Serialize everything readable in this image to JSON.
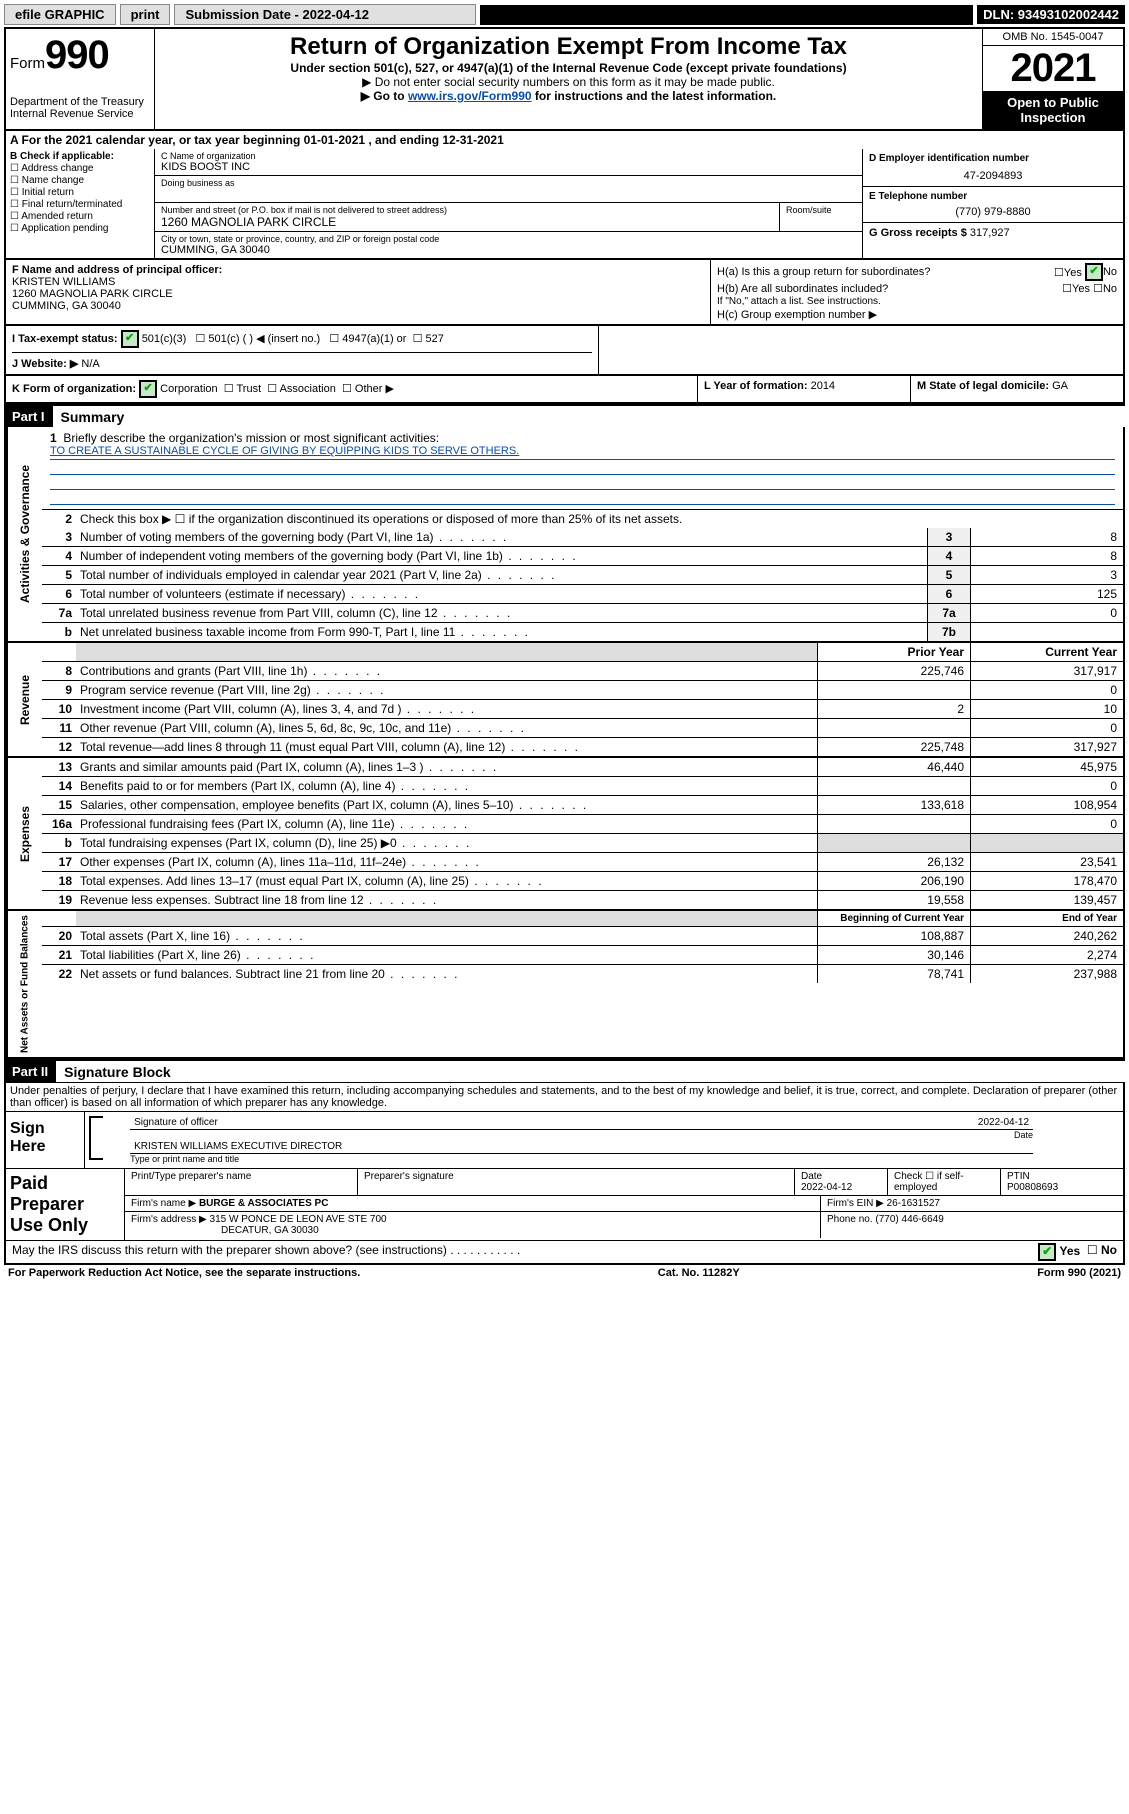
{
  "topbar": {
    "efile": "efile GRAPHIC",
    "print": "print",
    "submission": "Submission Date - 2022-04-12",
    "dln": "DLN: 93493102002442"
  },
  "header": {
    "form_word": "Form",
    "form_num": "990",
    "title": "Return of Organization Exempt From Income Tax",
    "subtitle": "Under section 501(c), 527, or 4947(a)(1) of the Internal Revenue Code (except private foundations)",
    "instr1": "▶ Do not enter social security numbers on this form as it may be made public.",
    "instr2_pre": "▶ Go to ",
    "instr2_link": "www.irs.gov/Form990",
    "instr2_post": " for instructions and the latest information.",
    "dept": "Department of the Treasury Internal Revenue Service",
    "omb": "OMB No. 1545-0047",
    "year": "2021",
    "open": "Open to Public Inspection"
  },
  "period": "A For the 2021 calendar year, or tax year beginning 01-01-2021   , and ending 12-31-2021",
  "b": {
    "title": "B Check if applicable:",
    "items": [
      "Address change",
      "Name change",
      "Initial return",
      "Final return/terminated",
      "Amended return",
      "Application pending"
    ]
  },
  "c": {
    "name_label": "C Name of organization",
    "name": "KIDS BOOST INC",
    "dba_label": "Doing business as",
    "addr_label": "Number and street (or P.O. box if mail is not delivered to street address)",
    "room_label": "Room/suite",
    "addr": "1260 MAGNOLIA PARK CIRCLE",
    "city_label": "City or town, state or province, country, and ZIP or foreign postal code",
    "city": "CUMMING, GA  30040"
  },
  "d": {
    "label": "D Employer identification number",
    "val": "47-2094893"
  },
  "e": {
    "label": "E Telephone number",
    "val": "(770) 979-8880"
  },
  "g": {
    "label": "G Gross receipts $",
    "val": "317,927"
  },
  "f": {
    "label": "F  Name and address of principal officer:",
    "name": "KRISTEN WILLIAMS",
    "addr1": "1260 MAGNOLIA PARK CIRCLE",
    "addr2": "CUMMING, GA  30040"
  },
  "h": {
    "ha": "H(a)  Is this a group return for subordinates?",
    "hb": "H(b)  Are all subordinates included?",
    "hb_note": "If \"No,\" attach a list. See instructions.",
    "hc": "H(c)  Group exemption number ▶",
    "yes": "Yes",
    "no": "No"
  },
  "i": {
    "label": "I    Tax-exempt status:",
    "o1": "501(c)(3)",
    "o2": "501(c) (  ) ◀ (insert no.)",
    "o3": "4947(a)(1) or",
    "o4": "527"
  },
  "j": {
    "label": "J   Website: ▶",
    "val": "N/A"
  },
  "k": {
    "label": "K Form of organization:",
    "corp": "Corporation",
    "trust": "Trust",
    "assoc": "Association",
    "other": "Other ▶"
  },
  "l": {
    "label": "L Year of formation:",
    "val": "2014"
  },
  "m": {
    "label": "M State of legal domicile:",
    "val": "GA"
  },
  "part1": {
    "header": "Part I",
    "title": "Summary"
  },
  "governance": {
    "label": "Activities & Governance",
    "q1": "Briefly describe the organization's mission or most significant activities:",
    "mission": "TO CREATE A SUSTAINABLE CYCLE OF GIVING BY EQUIPPING KIDS TO SERVE OTHERS.",
    "q2": "Check this box ▶ ☐  if the organization discontinued its operations or disposed of more than 25% of its net assets.",
    "rows": [
      {
        "n": "3",
        "d": "Number of voting members of the governing body (Part VI, line 1a)",
        "box": "3",
        "v": "8"
      },
      {
        "n": "4",
        "d": "Number of independent voting members of the governing body (Part VI, line 1b)",
        "box": "4",
        "v": "8"
      },
      {
        "n": "5",
        "d": "Total number of individuals employed in calendar year 2021 (Part V, line 2a)",
        "box": "5",
        "v": "3"
      },
      {
        "n": "6",
        "d": "Total number of volunteers (estimate if necessary)",
        "box": "6",
        "v": "125"
      },
      {
        "n": "7a",
        "d": "Total unrelated business revenue from Part VIII, column (C), line 12",
        "box": "7a",
        "v": "0"
      },
      {
        "n": "b",
        "d": "Net unrelated business taxable income from Form 990-T, Part I, line 11",
        "box": "7b",
        "v": ""
      }
    ]
  },
  "revenue": {
    "label": "Revenue",
    "hdr1": "Prior Year",
    "hdr2": "Current Year",
    "rows": [
      {
        "n": "8",
        "d": "Contributions and grants (Part VIII, line 1h)",
        "p": "225,746",
        "c": "317,917"
      },
      {
        "n": "9",
        "d": "Program service revenue (Part VIII, line 2g)",
        "p": "",
        "c": "0"
      },
      {
        "n": "10",
        "d": "Investment income (Part VIII, column (A), lines 3, 4, and 7d )",
        "p": "2",
        "c": "10"
      },
      {
        "n": "11",
        "d": "Other revenue (Part VIII, column (A), lines 5, 6d, 8c, 9c, 10c, and 11e)",
        "p": "",
        "c": "0"
      },
      {
        "n": "12",
        "d": "Total revenue—add lines 8 through 11 (must equal Part VIII, column (A), line 12)",
        "p": "225,748",
        "c": "317,927"
      }
    ]
  },
  "expenses": {
    "label": "Expenses",
    "rows": [
      {
        "n": "13",
        "d": "Grants and similar amounts paid (Part IX, column (A), lines 1–3 )",
        "p": "46,440",
        "c": "45,975"
      },
      {
        "n": "14",
        "d": "Benefits paid to or for members (Part IX, column (A), line 4)",
        "p": "",
        "c": "0"
      },
      {
        "n": "15",
        "d": "Salaries, other compensation, employee benefits (Part IX, column (A), lines 5–10)",
        "p": "133,618",
        "c": "108,954"
      },
      {
        "n": "16a",
        "d": "Professional fundraising fees (Part IX, column (A), line 11e)",
        "p": "",
        "c": "0"
      },
      {
        "n": "b",
        "d": "Total fundraising expenses (Part IX, column (D), line 25) ▶0",
        "p": "SHADE",
        "c": "SHADE"
      },
      {
        "n": "17",
        "d": "Other expenses (Part IX, column (A), lines 11a–11d, 11f–24e)",
        "p": "26,132",
        "c": "23,541"
      },
      {
        "n": "18",
        "d": "Total expenses. Add lines 13–17 (must equal Part IX, column (A), line 25)",
        "p": "206,190",
        "c": "178,470"
      },
      {
        "n": "19",
        "d": "Revenue less expenses. Subtract line 18 from line 12",
        "p": "19,558",
        "c": "139,457"
      }
    ]
  },
  "netassets": {
    "label": "Net Assets or Fund Balances",
    "hdr1": "Beginning of Current Year",
    "hdr2": "End of Year",
    "rows": [
      {
        "n": "20",
        "d": "Total assets (Part X, line 16)",
        "p": "108,887",
        "c": "240,262"
      },
      {
        "n": "21",
        "d": "Total liabilities (Part X, line 26)",
        "p": "30,146",
        "c": "2,274"
      },
      {
        "n": "22",
        "d": "Net assets or fund balances. Subtract line 21 from line 20",
        "p": "78,741",
        "c": "237,988"
      }
    ]
  },
  "part2": {
    "header": "Part II",
    "title": "Signature Block"
  },
  "sig": {
    "declaration": "Under penalties of perjury, I declare that I have examined this return, including accompanying schedules and statements, and to the best of my knowledge and belief, it is true, correct, and complete. Declaration of preparer (other than officer) is based on all information of which preparer has any knowledge.",
    "sign_here": "Sign Here",
    "sig_officer": "Signature of officer",
    "date": "Date",
    "date_val": "2022-04-12",
    "name_title": "KRISTEN WILLIAMS  EXECUTIVE DIRECTOR",
    "type_name": "Type or print name and title"
  },
  "prep": {
    "label": "Paid Preparer Use Only",
    "h1": "Print/Type preparer's name",
    "h2": "Preparer's signature",
    "h3": "Date",
    "h3v": "2022-04-12",
    "h4": "Check ☐ if self-employed",
    "h5": "PTIN",
    "h5v": "P00808693",
    "firm_name_l": "Firm's name    ▶",
    "firm_name": "BURGE & ASSOCIATES PC",
    "firm_ein_l": "Firm's EIN ▶",
    "firm_ein": "26-1631527",
    "firm_addr_l": "Firm's address ▶",
    "firm_addr": "315 W PONCE DE LEON AVE STE 700",
    "firm_city": "DECATUR, GA  30030",
    "phone_l": "Phone no.",
    "phone": "(770) 446-6649"
  },
  "footer": {
    "discuss": "May the IRS discuss this return with the preparer shown above? (see instructions)",
    "yes": "Yes",
    "no": "No",
    "pra": "For Paperwork Reduction Act Notice, see the separate instructions.",
    "cat": "Cat. No. 11282Y",
    "form": "Form 990 (2021)"
  }
}
